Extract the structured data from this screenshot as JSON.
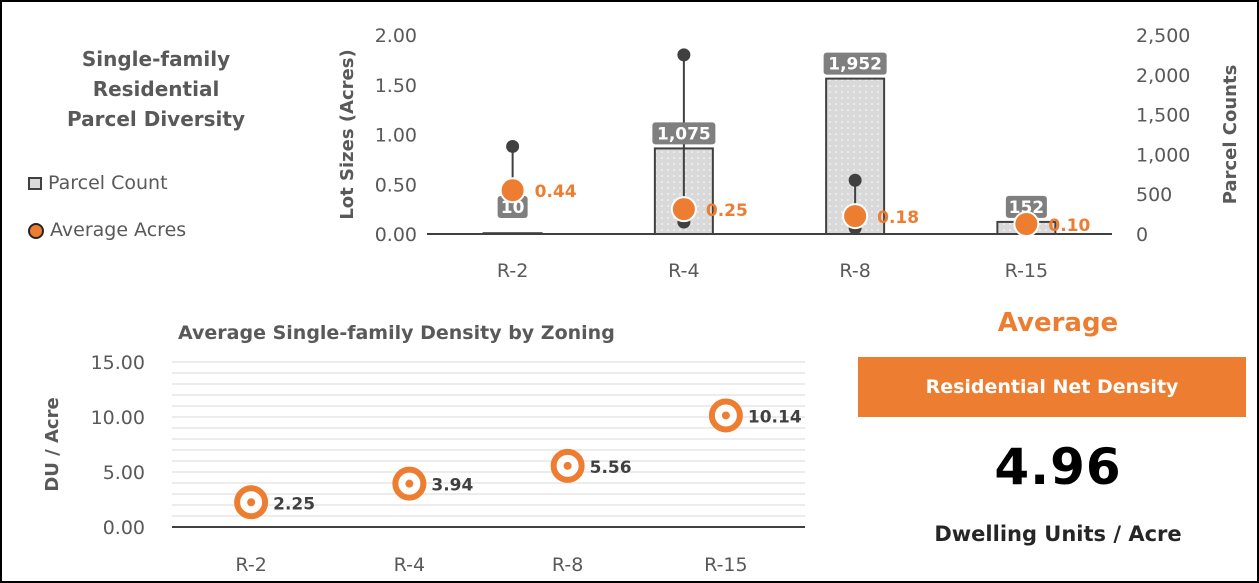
{
  "legend": {
    "title_lines": [
      "Single-family",
      "Residential",
      "Parcel Diversity"
    ],
    "items": [
      "Parcel Count",
      "Average Acres"
    ]
  },
  "colors": {
    "accent": "#ed7d31",
    "bar_fill": "#d9d9d9",
    "bar_stroke": "#404040",
    "text_gray": "#595959",
    "marker": "#404040"
  },
  "chart_data": [
    {
      "type": "bar",
      "title": "",
      "categories": [
        "R-2",
        "R-4",
        "R-8",
        "R-15"
      ],
      "ylabel": "Lot Sizes  (Acres)",
      "y2label": "Parcel  Counts",
      "ylim": [
        0,
        2.0
      ],
      "y_ticks": [
        "0.00",
        "0.50",
        "1.00",
        "1.50",
        "2.00"
      ],
      "y2lim": [
        0,
        2500
      ],
      "y2_ticks": [
        "0",
        "500",
        "1,000",
        "1,500",
        "2,000",
        "2,500"
      ],
      "series": [
        {
          "name": "Parcel Count",
          "axis": "right",
          "values": [
            10,
            1075,
            1952,
            152
          ],
          "labels": [
            "10",
            "1,075",
            "1,952",
            "152"
          ]
        },
        {
          "name": "Average Acres",
          "axis": "left",
          "values": [
            0.44,
            0.25,
            0.18,
            0.1
          ],
          "labels": [
            "0.44",
            "0.25",
            "0.18",
            "0.10"
          ]
        }
      ],
      "range_high": [
        0.88,
        1.8,
        0.54,
        0.12
      ],
      "range_low": [
        0.44,
        0.12,
        0.06,
        0.07
      ],
      "grid": false,
      "legend_position": "left"
    },
    {
      "type": "scatter",
      "title": "Average Single-family Density by Zoning",
      "categories": [
        "R-2",
        "R-4",
        "R-8",
        "R-15"
      ],
      "ylabel": "DU / Acre",
      "xlabel": "",
      "ylim": [
        0,
        15
      ],
      "y_ticks": [
        "0.00",
        "5.00",
        "10.00",
        "15.00"
      ],
      "series": [
        {
          "values": [
            2.25,
            3.94,
            5.56,
            10.14
          ],
          "labels": [
            "2.25",
            "3.94",
            "5.56",
            "10.14"
          ]
        }
      ],
      "grid": true
    }
  ],
  "summary": {
    "heading": "Average",
    "box_label": "Residential Net Density",
    "value": "4.96",
    "units": "Dwelling Units / Acre"
  }
}
